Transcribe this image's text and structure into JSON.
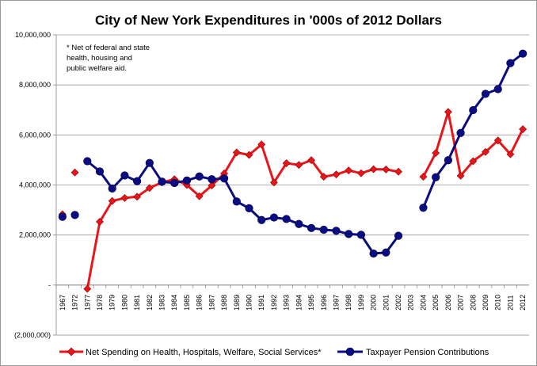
{
  "chart_data": {
    "type": "line",
    "title": "City of New York Expenditures in '000s of 2012 Dollars",
    "note_lines": [
      "*  Net of federal and state",
      "health, housing and",
      "public welfare aid."
    ],
    "categories": [
      "1967",
      "1972",
      "1977",
      "1978",
      "1979",
      "1980",
      "1981",
      "1982",
      "1983",
      "1984",
      "1985",
      "1986",
      "1987",
      "1988",
      "1989",
      "1990",
      "1991",
      "1992",
      "1993",
      "1994",
      "1995",
      "1996",
      "1997",
      "1998",
      "1999",
      "2000",
      "2001",
      "2002",
      "2003",
      "2004",
      "2005",
      "2006",
      "2007",
      "2008",
      "2009",
      "2010",
      "2011",
      "2012"
    ],
    "ylim": [
      -2000000,
      10000000
    ],
    "yticks": [
      {
        "value": 10000000,
        "label": "10,000,000"
      },
      {
        "value": 8000000,
        "label": "8,000,000"
      },
      {
        "value": 6000000,
        "label": "6,000,000"
      },
      {
        "value": 4000000,
        "label": "4,000,000"
      },
      {
        "value": 2000000,
        "label": "2,000,000"
      },
      {
        "value": 0,
        "label": "-"
      },
      {
        "value": -2000000,
        "label": "(2,000,000)"
      }
    ],
    "grid": "horizontal",
    "legend_position": "bottom",
    "series": [
      {
        "name": "Net Spending on Health, Hospitals, Welfare, Social Services*",
        "color": "#e8161b",
        "marker": "diamond",
        "values": [
          2830000,
          4500000,
          -150000,
          2530000,
          3360000,
          3480000,
          3530000,
          3880000,
          4100000,
          4230000,
          4000000,
          3550000,
          3980000,
          4460000,
          5300000,
          5200000,
          5620000,
          4100000,
          4870000,
          4800000,
          4990000,
          4330000,
          4420000,
          4580000,
          4470000,
          4630000,
          4620000,
          4530000,
          null,
          4330000,
          5280000,
          6920000,
          4370000,
          4950000,
          5320000,
          5780000,
          5230000,
          6230000
        ]
      },
      {
        "name": "Taxpayer Pension Contributions",
        "color": "#0a0c82",
        "marker": "circle",
        "values": [
          2730000,
          2800000,
          4950000,
          4540000,
          3860000,
          4380000,
          4150000,
          4880000,
          4130000,
          4080000,
          4180000,
          4340000,
          4230000,
          4260000,
          3340000,
          3070000,
          2600000,
          2700000,
          2640000,
          2440000,
          2280000,
          2210000,
          2170000,
          2040000,
          2010000,
          1260000,
          1300000,
          1970000,
          null,
          3090000,
          4310000,
          4990000,
          6080000,
          6990000,
          7640000,
          7830000,
          8870000,
          9250000
        ]
      }
    ]
  }
}
